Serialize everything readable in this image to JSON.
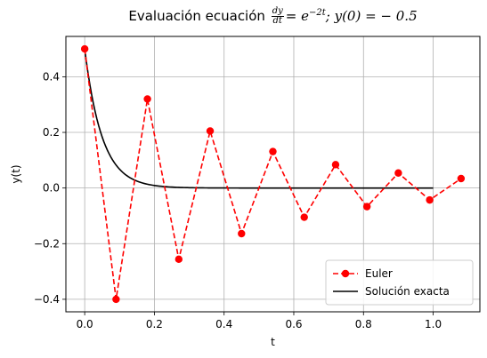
{
  "chart_data": {
    "type": "line",
    "title": {
      "prefix": "Evaluación ecuación",
      "frac_num": "dy",
      "frac_den": "dt",
      "eq": "=",
      "base": "e",
      "exponent": "−2t",
      "rest": "; y(0) = − 0.5"
    },
    "xlabel": "t",
    "ylabel": "y(t)",
    "xlim": [
      -0.054,
      1.134
    ],
    "ylim": [
      -0.445,
      0.545
    ],
    "xticks": [
      0.0,
      0.2,
      0.4,
      0.6,
      0.8,
      1.0
    ],
    "xtick_labels": [
      "0.0",
      "0.2",
      "0.4",
      "0.6",
      "0.8",
      "1.0"
    ],
    "yticks": [
      -0.4,
      -0.2,
      0.0,
      0.2,
      0.4
    ],
    "ytick_labels": [
      "−0.4",
      "−0.2",
      "0.0",
      "0.2",
      "0.4"
    ],
    "grid": true,
    "legend_position": "lower-right",
    "series": [
      {
        "name": "Euler",
        "style": "dashed-with-markers",
        "color": "#ff0000",
        "x": [
          0.0,
          0.09,
          0.18,
          0.27,
          0.36,
          0.45,
          0.54,
          0.63,
          0.72,
          0.81,
          0.9,
          0.99,
          1.08
        ],
        "y": [
          0.5,
          -0.4,
          0.32,
          -0.256,
          0.205,
          -0.164,
          0.131,
          -0.105,
          0.084,
          -0.067,
          0.054,
          -0.043,
          0.034
        ]
      },
      {
        "name": "Solución exacta",
        "style": "solid",
        "color": "#000000",
        "function": "0.5*exp(-20*t)",
        "x_range": [
          0.0,
          1.0
        ]
      }
    ]
  }
}
